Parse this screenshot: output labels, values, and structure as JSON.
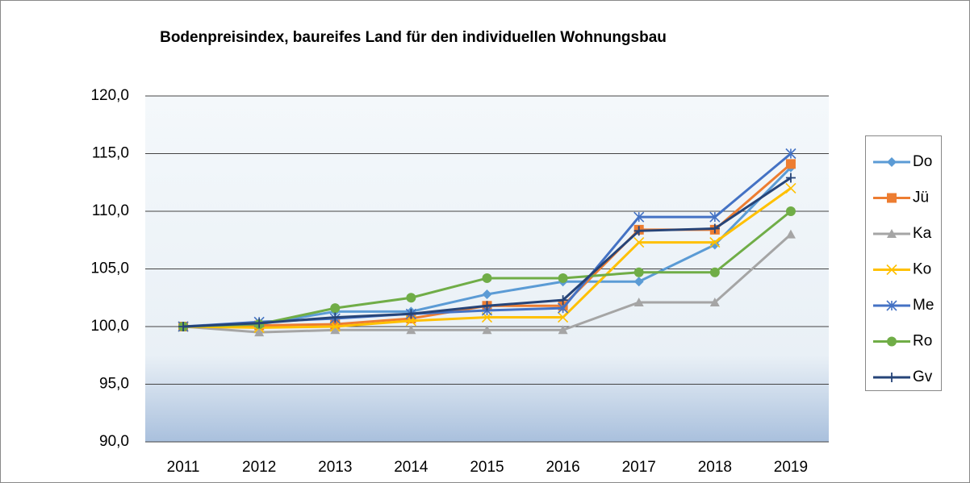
{
  "chart_data": {
    "type": "line",
    "title": "Bodenpreisindex, baureifes Land für den individuellen Wohnungsbau",
    "categories": [
      "2011",
      "2012",
      "2013",
      "2014",
      "2015",
      "2016",
      "2017",
      "2018",
      "2019"
    ],
    "ylim": [
      90,
      120
    ],
    "yticks": [
      {
        "value": 90,
        "label": "90,0"
      },
      {
        "value": 95,
        "label": "95,0"
      },
      {
        "value": 100,
        "label": "100,0"
      },
      {
        "value": 105,
        "label": "105,0"
      },
      {
        "value": 110,
        "label": "110,0"
      },
      {
        "value": 115,
        "label": "115,0"
      },
      {
        "value": 120,
        "label": "120,0"
      }
    ],
    "grid": true,
    "legend": "right",
    "series": [
      {
        "name": "Do",
        "color": "#5b9bd5",
        "marker": "diamond",
        "values": [
          100,
          100.2,
          101.3,
          101.3,
          102.8,
          103.9,
          103.9,
          107.1,
          113.8
        ]
      },
      {
        "name": "Jü",
        "color": "#ed7d31",
        "marker": "square",
        "values": [
          100,
          100.1,
          100.2,
          100.7,
          101.8,
          101.8,
          108.4,
          108.4,
          114.1
        ]
      },
      {
        "name": "Ka",
        "color": "#a5a5a5",
        "marker": "triangle",
        "values": [
          100,
          99.5,
          99.7,
          99.7,
          99.7,
          99.7,
          102.1,
          102.1,
          108.0
        ]
      },
      {
        "name": "Ko",
        "color": "#ffc000",
        "marker": "x",
        "values": [
          100,
          99.9,
          100.0,
          100.5,
          100.8,
          100.8,
          107.3,
          107.3,
          112.0
        ]
      },
      {
        "name": "Me",
        "color": "#4472c4",
        "marker": "star",
        "values": [
          100,
          100.4,
          100.7,
          101.1,
          101.4,
          101.6,
          109.5,
          109.5,
          115.0
        ]
      },
      {
        "name": "Ro",
        "color": "#70ad47",
        "marker": "circle",
        "values": [
          100,
          100.2,
          101.6,
          102.5,
          104.2,
          104.2,
          104.7,
          104.7,
          110.0
        ]
      },
      {
        "name": "Gv",
        "color": "#264478",
        "marker": "plus",
        "values": [
          100,
          100.3,
          100.8,
          101.1,
          101.8,
          102.3,
          108.3,
          108.5,
          112.9
        ]
      }
    ]
  }
}
